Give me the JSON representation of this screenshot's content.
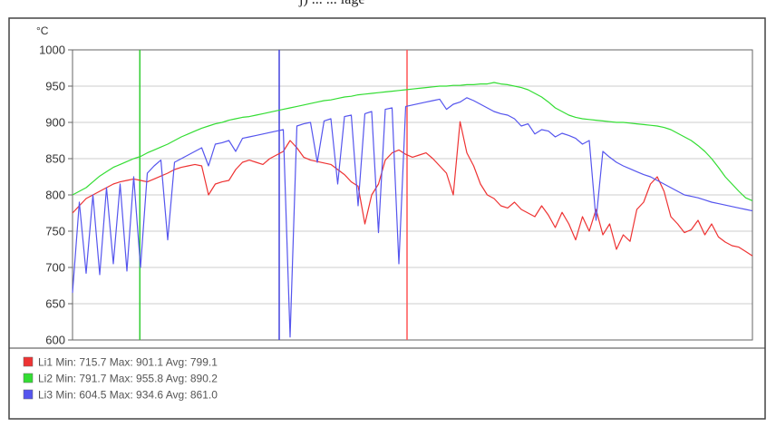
{
  "chart_data": {
    "type": "line",
    "title": "",
    "partial_caption": "j) ... ... lage",
    "y_unit": "°C",
    "xlabel": "",
    "ylabel": "",
    "ylim": [
      600,
      1000
    ],
    "yticks": [
      1000,
      950,
      900,
      850,
      800,
      750,
      700,
      650,
      600
    ],
    "x": [
      0,
      1,
      2,
      3,
      4,
      5,
      6,
      7,
      8,
      9,
      10,
      11,
      12,
      13,
      14,
      15,
      16,
      17,
      18,
      19,
      20,
      21,
      22,
      23,
      24,
      25,
      26,
      27,
      28,
      29,
      30,
      31,
      32,
      33,
      34,
      35,
      36,
      37,
      38,
      39,
      40,
      41,
      42,
      43,
      44,
      45,
      46,
      47,
      48,
      49,
      50,
      51,
      52,
      53,
      54,
      55,
      56,
      57,
      58,
      59,
      60,
      61,
      62,
      63,
      64,
      65,
      66,
      67,
      68,
      69,
      70,
      71,
      72,
      73,
      74,
      75,
      76,
      77,
      78,
      79,
      80,
      81,
      82,
      83,
      84,
      85,
      86,
      87,
      88,
      89,
      90,
      91,
      92,
      93,
      94,
      95,
      96,
      97,
      98,
      99,
      100
    ],
    "grid": true,
    "legend_position": "bottom",
    "series": [
      {
        "name": "Li1",
        "color": "#ee3333",
        "stats_label": "Li1  Min: 715.7 Max: 901.1  Avg: 799.1",
        "values": [
          775,
          785,
          795,
          800,
          805,
          810,
          815,
          818,
          820,
          822,
          820,
          818,
          822,
          826,
          830,
          835,
          838,
          840,
          842,
          840,
          800,
          815,
          818,
          820,
          835,
          845,
          848,
          845,
          842,
          850,
          855,
          860,
          875,
          865,
          852,
          848,
          846,
          844,
          842,
          835,
          828,
          818,
          812,
          760,
          800,
          815,
          848,
          858,
          862,
          856,
          852,
          855,
          858,
          850,
          840,
          830,
          800,
          901,
          858,
          840,
          815,
          800,
          795,
          785,
          782,
          790,
          780,
          775,
          770,
          785,
          772,
          755,
          776,
          760,
          738,
          770,
          750,
          780,
          745,
          760,
          725,
          745,
          736,
          780,
          790,
          815,
          825,
          805,
          770,
          760,
          748,
          752,
          765,
          745,
          760,
          742,
          735,
          730,
          728,
          722,
          716
        ]
      },
      {
        "name": "Li2",
        "color": "#33dd33",
        "stats_label": "Li2  Min: 791.7 Max: 955.8  Avg: 890.2",
        "values": [
          800,
          805,
          810,
          818,
          826,
          832,
          838,
          842,
          846,
          850,
          853,
          858,
          862,
          866,
          870,
          875,
          880,
          884,
          888,
          892,
          895,
          898,
          900,
          903,
          905,
          907,
          908,
          910,
          912,
          914,
          916,
          918,
          920,
          922,
          924,
          926,
          928,
          930,
          931,
          933,
          935,
          936,
          938,
          939,
          940,
          941,
          942,
          943,
          944,
          945,
          946,
          947,
          948,
          949,
          950,
          950,
          951,
          951,
          952,
          952,
          953,
          953,
          955,
          953,
          952,
          950,
          948,
          945,
          940,
          935,
          928,
          920,
          915,
          910,
          907,
          905,
          904,
          903,
          902,
          901,
          900,
          900,
          899,
          898,
          897,
          896,
          895,
          893,
          890,
          885,
          880,
          875,
          868,
          860,
          850,
          838,
          825,
          815,
          805,
          796,
          792
        ]
      },
      {
        "name": "Li3",
        "color": "#5555ee",
        "stats_label": "Li3  Min: 604.5 Max: 934.6  Avg: 861.0",
        "values": [
          665,
          790,
          692,
          800,
          690,
          810,
          705,
          815,
          695,
          825,
          700,
          830,
          840,
          848,
          738,
          845,
          850,
          855,
          860,
          865,
          840,
          870,
          872,
          875,
          860,
          878,
          880,
          882,
          884,
          886,
          888,
          890,
          604,
          895,
          898,
          900,
          845,
          902,
          905,
          815,
          908,
          910,
          785,
          912,
          915,
          748,
          918,
          920,
          705,
          922,
          924,
          926,
          928,
          930,
          932,
          918,
          925,
          928,
          934,
          930,
          925,
          920,
          915,
          912,
          910,
          905,
          895,
          898,
          884,
          890,
          888,
          880,
          885,
          882,
          878,
          870,
          875,
          765,
          860,
          852,
          845,
          840,
          836,
          832,
          828,
          825,
          820,
          815,
          810,
          805,
          800,
          798,
          796,
          793,
          790,
          788,
          786,
          784,
          782,
          780,
          778
        ]
      }
    ],
    "vertical_markers": [
      {
        "x": 9.9,
        "color": "#33cc33"
      },
      {
        "x": 30.4,
        "color": "#4444dd"
      },
      {
        "x": 49.2,
        "color": "#ff5555"
      }
    ]
  }
}
